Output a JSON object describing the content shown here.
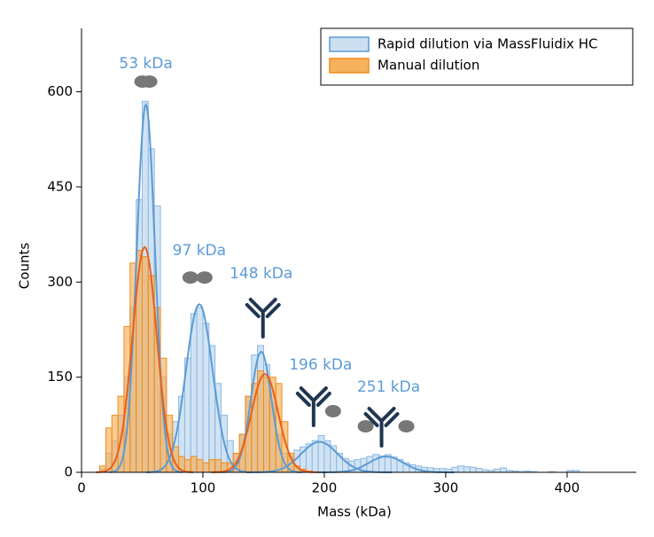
{
  "chart_data": {
    "type": "histogram",
    "xlabel": "Mass (kDa)",
    "ylabel": "Counts",
    "xlim": [
      0,
      457
    ],
    "ylim": [
      0,
      700
    ],
    "xticks": [
      0,
      100,
      200,
      300,
      400
    ],
    "yticks": [
      0,
      150,
      300,
      450,
      600
    ],
    "legend": "upper right",
    "bins": [
      15,
      20,
      25,
      30,
      35,
      40,
      45,
      50,
      55,
      60,
      65,
      70,
      75,
      80,
      85,
      90,
      95,
      100,
      105,
      110,
      115,
      120,
      125,
      130,
      135,
      140,
      145,
      150,
      155,
      160,
      165,
      170,
      175,
      180,
      185,
      190,
      195,
      200,
      205,
      210,
      215,
      220,
      225,
      230,
      235,
      240,
      245,
      250,
      255,
      260,
      265,
      270,
      275,
      280,
      285,
      290,
      295,
      300,
      305,
      310,
      315,
      320,
      325,
      330,
      335,
      340,
      345,
      350,
      355,
      360,
      365,
      370,
      375,
      380,
      385,
      390,
      395,
      400,
      405,
      410,
      415
    ],
    "series": [
      {
        "name": "Rapid dilution via MassFluidix HC",
        "color": "#5b9bd5",
        "values": [
          5,
          30,
          50,
          90,
          150,
          260,
          430,
          585,
          510,
          420,
          150,
          60,
          80,
          120,
          180,
          250,
          260,
          235,
          200,
          140,
          90,
          50,
          30,
          60,
          120,
          185,
          200,
          170,
          110,
          60,
          30,
          25,
          35,
          40,
          45,
          50,
          58,
          50,
          42,
          30,
          22,
          18,
          20,
          22,
          25,
          28,
          26,
          28,
          24,
          20,
          15,
          12,
          10,
          8,
          7,
          6,
          6,
          5,
          8,
          10,
          9,
          8,
          6,
          4,
          3,
          5,
          7,
          3,
          2,
          1,
          2,
          1,
          0,
          0,
          1,
          0,
          0,
          3,
          3,
          0
        ]
      },
      {
        "name": "Manual dilution",
        "color": "#f08c1c",
        "values": [
          10,
          70,
          90,
          120,
          230,
          330,
          350,
          340,
          310,
          260,
          180,
          90,
          40,
          25,
          20,
          25,
          20,
          15,
          20,
          20,
          15,
          15,
          30,
          60,
          120,
          140,
          160,
          150,
          150,
          140,
          80,
          30,
          10,
          5,
          2,
          0,
          0,
          0,
          0,
          0,
          0,
          0,
          0,
          0,
          0,
          0,
          0,
          0,
          0,
          0,
          0,
          0,
          0,
          0,
          0,
          0,
          0,
          0,
          0,
          0,
          0,
          0,
          0,
          0,
          0,
          0,
          0,
          0,
          0,
          0,
          0,
          0,
          0,
          0,
          0,
          0,
          0,
          0,
          0,
          0
        ]
      }
    ],
    "fits": [
      {
        "color": "#5b9bd5",
        "peaks": [
          {
            "center": 53,
            "amplitude": 580,
            "sigma": 7.5
          },
          {
            "center": 97,
            "amplitude": 265,
            "sigma": 11
          },
          {
            "center": 148,
            "amplitude": 190,
            "sigma": 8.5
          },
          {
            "center": 196,
            "amplitude": 48,
            "sigma": 15
          },
          {
            "center": 251,
            "amplitude": 25,
            "sigma": 14
          }
        ]
      },
      {
        "color": "#e8601c",
        "peaks": [
          {
            "center": 52,
            "amplitude": 355,
            "sigma": 10
          },
          {
            "center": 151,
            "amplitude": 155,
            "sigma": 11
          }
        ]
      }
    ],
    "annotations": [
      {
        "text": "53 kDa",
        "x": 53,
        "y": 644
      },
      {
        "text": "97 kDa",
        "x": 97,
        "y": 349
      },
      {
        "text": "148 kDa",
        "x": 148,
        "y": 313
      },
      {
        "text": "196 kDa",
        "x": 197,
        "y": 169
      },
      {
        "text": "251 kDa",
        "x": 253,
        "y": 134
      }
    ]
  }
}
